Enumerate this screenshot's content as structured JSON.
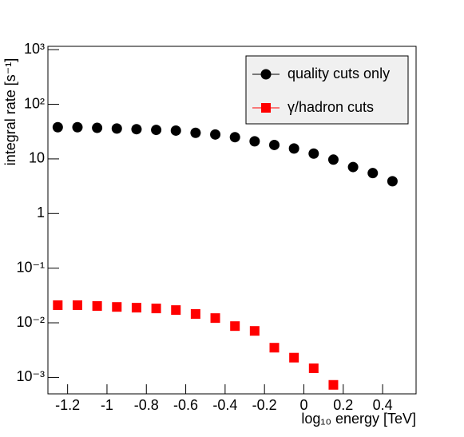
{
  "chart_data": {
    "type": "scatter",
    "y_label": "integral rate [s⁻¹]",
    "x_label": "log₁₀ energy [TeV]",
    "x": [
      -1.25,
      -1.15,
      -1.05,
      -0.95,
      -0.85,
      -0.75,
      -0.65,
      -0.55,
      -0.45,
      -0.35,
      -0.25,
      -0.15,
      -0.05,
      0.05,
      0.15,
      0.25,
      0.35,
      0.45
    ],
    "series": [
      {
        "name": "quality cuts only",
        "color": "#000000",
        "marker": "circle",
        "values": [
          38,
          38,
          37,
          36,
          35,
          34,
          33,
          30,
          28,
          25,
          21,
          18,
          15.5,
          12.5,
          9.7,
          7.1,
          5.5,
          3.9
        ]
      },
      {
        "name": "γ/hadron cuts",
        "color": "#ff0000",
        "marker": "square",
        "values": [
          0.021,
          0.021,
          0.0203,
          0.0195,
          0.0189,
          0.0183,
          0.0171,
          0.0145,
          0.0122,
          0.0087,
          0.0071,
          0.0035,
          0.0023,
          0.00147,
          0.00073,
          null,
          null,
          null
        ]
      }
    ],
    "log_y": true,
    "xlim": [
      -1.3,
      0.57
    ],
    "ylim": [
      0.0005,
      1150
    ],
    "xticks": [
      -1.2,
      -1,
      -0.8,
      -0.6,
      -0.4,
      -0.2,
      0,
      0.2,
      0.4
    ],
    "yticks": [
      {
        "value": 0.001,
        "label": "10⁻³"
      },
      {
        "value": 0.01,
        "label": "10⁻²"
      },
      {
        "value": 0.1,
        "label": "10⁻¹"
      },
      1,
      10,
      {
        "value": 100,
        "label": "10²"
      },
      {
        "value": 1000,
        "label": "10³"
      }
    ],
    "legend_position": "upper right"
  }
}
